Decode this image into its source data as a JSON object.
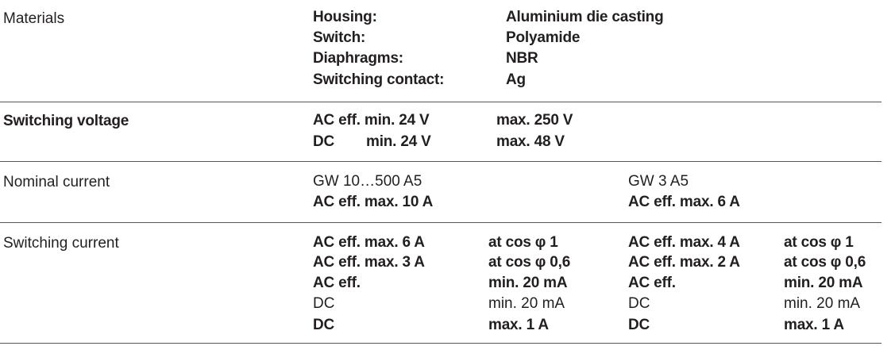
{
  "rows": {
    "materials": {
      "label": "Materials",
      "items": [
        {
          "key": "Housing:",
          "value": "Aluminium die casting"
        },
        {
          "key": "Switch:",
          "value": "Polyamide"
        },
        {
          "key": "Diaphragms:",
          "value": "NBR"
        },
        {
          "key": "Switching contact:",
          "value": "Ag"
        }
      ]
    },
    "switching_voltage": {
      "label": "Switching voltage",
      "ac": {
        "min": "AC eff. min. 24 V",
        "max": "max. 250 V"
      },
      "dc": {
        "prefix": "DC",
        "min": "min. 24 V",
        "max": "max. 48 V"
      }
    },
    "nominal_current": {
      "label": "Nominal current",
      "col1": {
        "model": "GW 10…500 A5",
        "value": "AC eff. max. 10 A"
      },
      "col2": {
        "model": "GW 3 A5",
        "value": "AC eff. max. 6 A"
      }
    },
    "switching_current": {
      "label": "Switching current",
      "col1": [
        {
          "a": "AC eff. max. 6 A",
          "b": "at cos φ 1"
        },
        {
          "a": "AC eff. max. 3 A",
          "b": "at cos φ 0,6"
        },
        {
          "a": "AC eff.",
          "b": "min. 20 mA"
        },
        {
          "a": "DC",
          "b": "min. 20 mA"
        },
        {
          "a": "DC",
          "b": "max. 1 A"
        }
      ],
      "col2": [
        {
          "a": "AC eff. max. 4 A",
          "b": "at cos φ 1"
        },
        {
          "a": "AC eff. max. 2 A",
          "b": "at cos φ 0,6"
        },
        {
          "a": "AC eff.",
          "b": "min. 20 mA"
        },
        {
          "a": "DC",
          "b": "min. 20 mA"
        },
        {
          "a": "DC",
          "b": "max. 1 A"
        }
      ]
    }
  }
}
